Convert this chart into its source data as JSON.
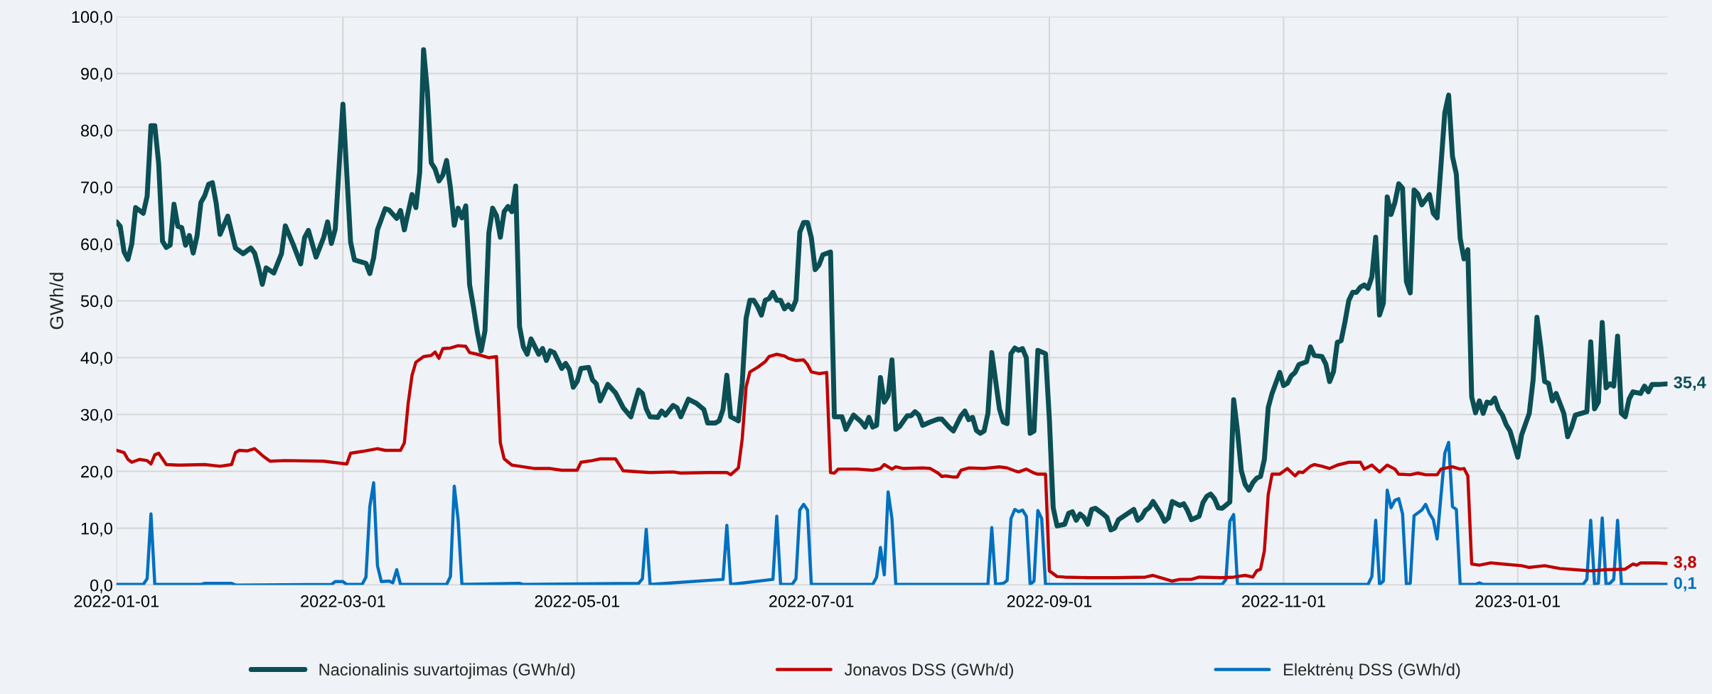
{
  "chart_data": {
    "type": "line",
    "ylabel": "GWh/d",
    "xlim": [
      "2022-01-01",
      "2023-02-09"
    ],
    "xticks": [
      "2022-01-01",
      "2022-03-01",
      "2022-05-01",
      "2022-07-01",
      "2022-09-01",
      "2022-11-01",
      "2023-01-01"
    ],
    "ylim": [
      0,
      100
    ],
    "yticks": [
      {
        "value": 0,
        "label": "0,0"
      },
      {
        "value": 10,
        "label": "10,0"
      },
      {
        "value": 20,
        "label": "20,0"
      },
      {
        "value": 30,
        "label": "30,0"
      },
      {
        "value": 40,
        "label": "40,0"
      },
      {
        "value": 50,
        "label": "50,0"
      },
      {
        "value": 60,
        "label": "60,0"
      },
      {
        "value": 70,
        "label": "70,0"
      },
      {
        "value": 80,
        "label": "80,0"
      },
      {
        "value": 90,
        "label": "90,0"
      },
      {
        "value": 100,
        "label": "100,0"
      }
    ],
    "grid": true,
    "legend": "bottom",
    "marker": "none",
    "line_style": "solid",
    "series": [
      {
        "name": "Nacionalinis suvartojimas (GWh/d)",
        "color": "#0b4f55",
        "x": [
          "2022-01-01",
          "2022-01-02",
          "2022-01-03",
          "2022-01-04",
          "2022-01-05",
          "2022-01-06",
          "2022-01-08",
          "2022-01-09",
          "2022-01-10",
          "2022-01-11",
          "2022-01-12",
          "2022-01-13",
          "2022-01-14",
          "2022-01-15",
          "2022-01-16",
          "2022-01-17",
          "2022-01-18",
          "2022-01-19",
          "2022-01-20",
          "2022-01-21",
          "2022-01-22",
          "2022-01-23",
          "2022-01-24",
          "2022-01-25",
          "2022-01-26",
          "2022-01-27",
          "2022-01-28",
          "2022-01-30",
          "2022-02-01",
          "2022-02-03",
          "2022-02-05",
          "2022-02-06",
          "2022-02-07",
          "2022-02-08",
          "2022-02-09",
          "2022-02-11",
          "2022-02-13",
          "2022-02-14",
          "2022-02-16",
          "2022-02-18",
          "2022-02-19",
          "2022-02-20",
          "2022-02-22",
          "2022-02-24",
          "2022-02-25",
          "2022-02-26",
          "2022-02-27",
          "2022-03-01",
          "2022-03-03",
          "2022-03-04",
          "2022-03-07",
          "2022-03-08",
          "2022-03-09",
          "2022-03-10",
          "2022-03-12",
          "2022-03-13",
          "2022-03-15",
          "2022-03-16",
          "2022-03-17",
          "2022-03-19",
          "2022-03-20",
          "2022-03-21",
          "2022-03-22",
          "2022-03-23",
          "2022-03-24",
          "2022-03-25",
          "2022-03-26",
          "2022-03-27",
          "2022-03-28",
          "2022-03-29",
          "2022-03-30",
          "2022-03-31",
          "2022-04-01",
          "2022-04-02",
          "2022-04-03",
          "2022-04-04",
          "2022-04-05",
          "2022-04-06",
          "2022-04-07",
          "2022-04-08",
          "2022-04-09",
          "2022-04-10",
          "2022-04-11",
          "2022-04-12",
          "2022-04-13",
          "2022-04-14",
          "2022-04-15",
          "2022-04-16",
          "2022-04-17",
          "2022-04-18",
          "2022-04-19",
          "2022-04-21",
          "2022-04-22",
          "2022-04-23",
          "2022-04-24",
          "2022-04-25",
          "2022-04-27",
          "2022-04-28",
          "2022-04-29",
          "2022-04-30",
          "2022-05-01",
          "2022-05-02",
          "2022-05-04",
          "2022-05-05",
          "2022-05-06",
          "2022-05-07",
          "2022-05-09",
          "2022-05-11",
          "2022-05-13",
          "2022-05-15",
          "2022-05-16",
          "2022-05-17",
          "2022-05-18",
          "2022-05-19",
          "2022-05-20",
          "2022-05-22",
          "2022-05-23",
          "2022-05-24",
          "2022-05-26",
          "2022-05-27",
          "2022-05-28",
          "2022-05-30",
          "2022-06-01",
          "2022-06-03",
          "2022-06-04",
          "2022-06-06",
          "2022-06-07",
          "2022-06-08",
          "2022-06-09",
          "2022-06-10",
          "2022-06-12",
          "2022-06-13",
          "2022-06-14",
          "2022-06-15",
          "2022-06-16",
          "2022-06-17",
          "2022-06-18",
          "2022-06-19",
          "2022-06-20",
          "2022-06-21",
          "2022-06-22",
          "2022-06-23",
          "2022-06-24",
          "2022-06-25",
          "2022-06-26",
          "2022-06-27",
          "2022-06-28",
          "2022-06-29",
          "2022-06-30",
          "2022-07-01",
          "2022-07-02",
          "2022-07-03",
          "2022-07-04",
          "2022-07-06",
          "2022-07-07",
          "2022-07-09",
          "2022-07-10",
          "2022-07-12",
          "2022-07-14",
          "2022-07-15",
          "2022-07-16",
          "2022-07-17",
          "2022-07-18",
          "2022-07-19",
          "2022-07-20",
          "2022-07-21",
          "2022-07-22",
          "2022-07-23",
          "2022-07-24",
          "2022-07-26",
          "2022-07-27",
          "2022-07-28",
          "2022-07-29",
          "2022-07-30",
          "2022-08-01",
          "2022-08-03",
          "2022-08-04",
          "2022-08-06",
          "2022-08-07",
          "2022-08-09",
          "2022-08-10",
          "2022-08-11",
          "2022-08-12",
          "2022-08-13",
          "2022-08-14",
          "2022-08-15",
          "2022-08-16",
          "2022-08-17",
          "2022-08-19",
          "2022-08-20",
          "2022-08-21",
          "2022-08-22",
          "2022-08-23",
          "2022-08-24",
          "2022-08-25",
          "2022-08-26",
          "2022-08-27",
          "2022-08-28",
          "2022-08-29",
          "2022-08-31",
          "2022-09-01",
          "2022-09-02",
          "2022-09-03",
          "2022-09-05",
          "2022-09-06",
          "2022-09-07",
          "2022-09-08",
          "2022-09-09",
          "2022-09-10",
          "2022-09-11",
          "2022-09-12",
          "2022-09-13",
          "2022-09-15",
          "2022-09-16",
          "2022-09-17",
          "2022-09-18",
          "2022-09-19",
          "2022-09-21",
          "2022-09-23",
          "2022-09-24",
          "2022-09-25",
          "2022-09-26",
          "2022-09-27",
          "2022-09-28",
          "2022-09-30",
          "2022-10-01",
          "2022-10-02",
          "2022-10-03",
          "2022-10-05",
          "2022-10-06",
          "2022-10-07",
          "2022-10-08",
          "2022-10-10",
          "2022-10-11",
          "2022-10-12",
          "2022-10-13",
          "2022-10-14",
          "2022-10-15",
          "2022-10-16",
          "2022-10-18",
          "2022-10-19",
          "2022-10-20",
          "2022-10-21",
          "2022-10-22",
          "2022-10-23",
          "2022-10-24",
          "2022-10-25",
          "2022-10-26",
          "2022-10-27",
          "2022-10-28",
          "2022-10-29",
          "2022-10-31",
          "2022-11-01",
          "2022-11-02",
          "2022-11-03",
          "2022-11-04",
          "2022-11-05",
          "2022-11-07",
          "2022-11-08",
          "2022-11-09",
          "2022-11-10",
          "2022-11-11",
          "2022-11-12",
          "2022-11-13",
          "2022-11-14",
          "2022-11-15",
          "2022-11-16",
          "2022-11-17",
          "2022-11-18",
          "2022-11-19",
          "2022-11-20",
          "2022-11-21",
          "2022-11-22",
          "2022-11-23",
          "2022-11-24",
          "2022-11-25",
          "2022-11-26",
          "2022-11-27",
          "2022-11-28",
          "2022-11-29",
          "2022-11-30",
          "2022-12-01",
          "2022-12-02",
          "2022-12-03",
          "2022-12-04",
          "2022-12-05",
          "2022-12-06",
          "2022-12-07",
          "2022-12-09",
          "2022-12-10",
          "2022-12-11",
          "2022-12-13",
          "2022-12-14",
          "2022-12-15",
          "2022-12-16",
          "2022-12-17",
          "2022-12-18",
          "2022-12-19",
          "2022-12-20",
          "2022-12-21",
          "2022-12-22",
          "2022-12-23",
          "2022-12-24",
          "2022-12-25",
          "2022-12-26",
          "2022-12-27",
          "2022-12-28",
          "2022-12-29",
          "2022-12-30",
          "2023-01-01",
          "2023-01-02",
          "2023-01-04",
          "2023-01-05",
          "2023-01-06",
          "2023-01-07",
          "2023-01-08",
          "2023-01-09",
          "2023-01-10",
          "2023-01-11",
          "2023-01-13",
          "2023-01-14",
          "2023-01-15",
          "2023-01-16",
          "2023-01-19",
          "2023-01-20",
          "2023-01-21",
          "2023-01-22",
          "2023-01-23",
          "2023-01-24",
          "2023-01-25",
          "2023-01-26",
          "2023-01-27",
          "2023-01-28",
          "2023-01-29",
          "2023-01-30",
          "2023-01-31",
          "2023-02-02",
          "2023-02-03",
          "2023-02-04",
          "2023-02-05",
          "2023-02-07",
          "2023-02-09"
        ],
        "values": [
          63.9,
          63.1,
          58.6,
          57.3,
          60.0,
          66.4,
          65.4,
          68.4,
          80.8,
          80.8,
          74.2,
          60.5,
          59.4,
          59.8,
          67.0,
          63.1,
          62.9,
          59.8,
          61.5,
          58.4,
          61.4,
          67.3,
          68.5,
          70.5,
          70.8,
          67.1,
          61.7,
          64.9,
          59.3,
          58.3,
          59.3,
          58.4,
          55.9,
          52.9,
          55.8,
          54.9,
          58.3,
          63.2,
          60.0,
          56.5,
          61.1,
          62.4,
          57.7,
          61.2,
          63.9,
          60.1,
          62.6,
          84.6,
          60.3,
          57.2,
          56.6,
          54.8,
          57.6,
          62.5,
          66.2,
          66.0,
          64.5,
          65.9,
          62.5,
          68.7,
          66.4,
          72.6,
          94.2,
          86.8,
          74.3,
          73.2,
          71.1,
          72.1,
          74.7,
          69.9,
          63.3,
          66.3,
          64.6,
          66.7,
          52.8,
          48.9,
          44.5,
          41.2,
          44.7,
          61.9,
          66.3,
          65.0,
          61.2,
          65.7,
          66.6,
          65.7,
          70.2,
          45.5,
          41.9,
          40.6,
          43.3,
          40.6,
          41.6,
          39.5,
          41.2,
          40.9,
          38.1,
          39.0,
          37.9,
          34.8,
          35.8,
          38.1,
          38.3,
          36.1,
          35.4,
          32.4,
          35.3,
          33.8,
          31.2,
          29.6,
          32.0,
          34.3,
          33.7,
          31.0,
          29.6,
          29.5,
          30.6,
          29.9,
          31.6,
          31.2,
          29.6,
          32.7,
          32.0,
          30.9,
          28.5,
          28.5,
          28.9,
          30.9,
          36.9,
          29.6,
          28.9,
          35.5,
          46.9,
          50.1,
          50.1,
          49.0,
          47.5,
          50.1,
          50.4,
          51.5,
          50.1,
          50.1,
          48.6,
          49.3,
          48.5,
          50.1,
          62.1,
          63.8,
          63.8,
          61.1,
          55.5,
          56.3,
          58.1,
          58.6,
          29.6,
          29.6,
          27.4,
          29.9,
          28.7,
          27.8,
          29.5,
          27.8,
          28.1,
          36.5,
          32.2,
          33.3,
          39.6,
          27.4,
          27.9,
          29.8,
          29.8,
          30.5,
          29.9,
          28.1,
          28.7,
          29.2,
          29.2,
          27.7,
          27.1,
          29.8,
          30.6,
          29.1,
          29.5,
          27.2,
          26.7,
          27.1,
          30.2,
          40.9,
          31.0,
          28.7,
          28.4,
          40.7,
          41.7,
          41.3,
          41.6,
          40.0,
          26.7,
          27.1,
          41.3,
          40.7,
          29.2,
          13.6,
          10.4,
          10.7,
          12.6,
          12.9,
          11.4,
          12.5,
          11.9,
          10.7,
          13.3,
          13.5,
          12.5,
          11.9,
          9.7,
          10.0,
          11.5,
          12.4,
          13.3,
          11.4,
          11.9,
          13.1,
          13.6,
          14.7,
          12.6,
          11.2,
          11.8,
          14.7,
          14.0,
          14.3,
          13.1,
          11.5,
          12.1,
          14.5,
          15.6,
          16.0,
          15.2,
          13.6,
          13.5,
          14.6,
          32.6,
          27.1,
          20.1,
          17.7,
          16.7,
          18.0,
          18.8,
          19.1,
          22.1,
          31.2,
          33.7,
          37.4,
          35.1,
          35.5,
          36.8,
          37.4,
          38.8,
          39.3,
          41.9,
          40.4,
          40.3,
          40.2,
          38.9,
          35.8,
          37.5,
          42.7,
          43.0,
          46.3,
          50.1,
          51.5,
          51.5,
          52.4,
          52.8,
          52.2,
          54.2,
          61.2,
          47.5,
          49.6,
          68.3,
          65.2,
          67.3,
          70.6,
          69.8,
          53.4,
          51.4,
          69.5,
          68.8,
          66.9,
          68.7,
          65.4,
          64.6,
          83.1,
          86.2,
          75.4,
          72.3,
          61.0,
          57.4,
          59.0,
          33.1,
          30.3,
          32.4,
          30.2,
          32.2,
          32.0,
          32.9,
          30.9,
          29.9,
          28.2,
          27.1,
          22.5,
          26.4,
          30.2,
          36.1,
          47.1,
          41.9,
          35.8,
          35.5,
          32.4,
          33.7,
          30.2,
          26.1,
          27.7,
          29.9,
          30.5,
          42.8,
          31.0,
          32.2,
          46.2,
          34.7,
          35.4,
          35.0,
          43.8,
          30.2,
          29.6,
          32.7,
          34.0,
          33.7,
          35.0,
          34.0,
          35.3,
          35.3,
          35.4
        ]
      },
      {
        "name": "Jonavos DSS (GWh/d)",
        "color": "#c00000",
        "x": [
          "2022-01-01",
          "2022-01-03",
          "2022-01-04",
          "2022-01-05",
          "2022-01-07",
          "2022-01-09",
          "2022-01-10",
          "2022-01-11",
          "2022-01-12",
          "2022-01-14",
          "2022-01-17",
          "2022-01-24",
          "2022-01-28",
          "2022-01-31",
          "2022-02-01",
          "2022-02-02",
          "2022-02-04",
          "2022-02-06",
          "2022-02-08",
          "2022-02-10",
          "2022-02-14",
          "2022-02-24",
          "2022-03-02",
          "2022-03-03",
          "2022-03-06",
          "2022-03-10",
          "2022-03-12",
          "2022-03-16",
          "2022-03-17",
          "2022-03-18",
          "2022-03-19",
          "2022-03-20",
          "2022-03-22",
          "2022-03-24",
          "2022-03-25",
          "2022-03-26",
          "2022-03-27",
          "2022-03-29",
          "2022-03-31",
          "2022-04-02",
          "2022-04-03",
          "2022-04-05",
          "2022-04-08",
          "2022-04-10",
          "2022-04-11",
          "2022-04-12",
          "2022-04-14",
          "2022-04-16",
          "2022-04-20",
          "2022-04-24",
          "2022-04-27",
          "2022-05-01",
          "2022-05-02",
          "2022-05-05",
          "2022-05-07",
          "2022-05-11",
          "2022-05-13",
          "2022-05-20",
          "2022-05-26",
          "2022-05-28",
          "2022-06-04",
          "2022-06-09",
          "2022-06-10",
          "2022-06-12",
          "2022-06-13",
          "2022-06-14",
          "2022-06-15",
          "2022-06-17",
          "2022-06-19",
          "2022-06-20",
          "2022-06-22",
          "2022-06-24",
          "2022-06-25",
          "2022-06-27",
          "2022-06-29",
          "2022-06-30",
          "2022-07-01",
          "2022-07-03",
          "2022-07-05",
          "2022-07-06",
          "2022-07-07",
          "2022-07-08",
          "2022-07-11",
          "2022-07-13",
          "2022-07-17",
          "2022-07-19",
          "2022-07-20",
          "2022-07-22",
          "2022-07-23",
          "2022-07-25",
          "2022-07-30",
          "2022-08-01",
          "2022-08-03",
          "2022-08-04",
          "2022-08-05",
          "2022-08-07",
          "2022-08-08",
          "2022-08-09",
          "2022-08-11",
          "2022-08-15",
          "2022-08-19",
          "2022-08-21",
          "2022-08-23",
          "2022-08-24",
          "2022-08-26",
          "2022-08-28",
          "2022-08-29",
          "2022-08-31",
          "2022-09-01",
          "2022-09-03",
          "2022-09-05",
          "2022-09-11",
          "2022-09-18",
          "2022-09-26",
          "2022-09-28",
          "2022-10-01",
          "2022-10-03",
          "2022-10-05",
          "2022-10-08",
          "2022-10-10",
          "2022-10-16",
          "2022-10-19",
          "2022-10-22",
          "2022-10-24",
          "2022-10-25",
          "2022-10-26",
          "2022-10-27",
          "2022-10-28",
          "2022-10-29",
          "2022-10-31",
          "2022-11-02",
          "2022-11-04",
          "2022-11-05",
          "2022-11-06",
          "2022-11-08",
          "2022-11-09",
          "2022-11-11",
          "2022-11-13",
          "2022-11-15",
          "2022-11-18",
          "2022-11-21",
          "2022-11-22",
          "2022-11-24",
          "2022-11-26",
          "2022-11-28",
          "2022-11-30",
          "2022-12-01",
          "2022-12-04",
          "2022-12-06",
          "2022-12-08",
          "2022-12-11",
          "2022-12-12",
          "2022-12-15",
          "2022-12-17",
          "2022-12-18",
          "2022-12-19",
          "2022-12-20",
          "2022-12-22",
          "2022-12-25",
          "2022-12-28",
          "2023-01-02",
          "2023-01-04",
          "2023-01-08",
          "2023-01-12",
          "2023-01-16",
          "2023-01-20",
          "2023-01-24",
          "2023-01-29",
          "2023-01-31",
          "2023-02-01",
          "2023-02-02",
          "2023-02-06",
          "2023-02-09"
        ],
        "values": [
          23.7,
          23.3,
          22.1,
          21.6,
          22.1,
          21.9,
          21.3,
          22.9,
          23.2,
          21.2,
          21.1,
          21.2,
          20.9,
          21.2,
          23.3,
          23.7,
          23.6,
          24.0,
          22.8,
          21.8,
          21.9,
          21.8,
          21.3,
          23.2,
          23.5,
          24.0,
          23.7,
          23.7,
          25.0,
          32.0,
          36.9,
          39.2,
          40.2,
          40.4,
          41.0,
          39.9,
          41.6,
          41.7,
          42.1,
          42.0,
          40.9,
          40.6,
          40.0,
          40.2,
          25.0,
          22.2,
          21.1,
          20.9,
          20.5,
          20.5,
          20.2,
          20.2,
          21.6,
          21.9,
          22.2,
          22.2,
          20.1,
          19.8,
          19.9,
          19.7,
          19.8,
          19.8,
          19.4,
          20.6,
          25.7,
          34.8,
          37.5,
          38.3,
          39.3,
          40.2,
          40.6,
          40.3,
          39.9,
          39.5,
          39.6,
          38.8,
          37.5,
          37.2,
          37.4,
          19.8,
          19.7,
          20.4,
          20.4,
          20.4,
          20.2,
          20.5,
          21.2,
          20.4,
          20.8,
          20.5,
          20.6,
          20.5,
          19.7,
          19.1,
          19.2,
          19.0,
          19.0,
          20.2,
          20.6,
          20.5,
          20.8,
          20.6,
          20.1,
          19.9,
          20.4,
          19.7,
          19.5,
          19.5,
          2.5,
          1.5,
          1.4,
          1.3,
          1.3,
          1.4,
          1.7,
          1.1,
          0.7,
          1.0,
          1.0,
          1.4,
          1.3,
          1.4,
          1.7,
          1.4,
          2.5,
          2.8,
          6.0,
          15.9,
          19.5,
          19.5,
          20.5,
          19.2,
          19.9,
          19.8,
          20.9,
          21.2,
          20.9,
          20.5,
          21.1,
          21.6,
          21.6,
          20.4,
          21.1,
          19.9,
          21.1,
          20.4,
          19.5,
          19.4,
          19.7,
          19.4,
          19.4,
          20.4,
          20.8,
          20.4,
          20.5,
          19.2,
          3.7,
          3.5,
          3.9,
          3.7,
          3.4,
          3.1,
          3.4,
          2.9,
          2.7,
          2.5,
          2.7,
          2.8,
          3.7,
          3.5,
          3.9,
          3.9,
          3.8
        ]
      },
      {
        "name": "Elektrėnų DSS (GWh/d)",
        "color": "#0070c0",
        "x": [
          "2022-01-01",
          "2022-01-08",
          "2022-01-09",
          "2022-01-10",
          "2022-01-11",
          "2022-01-23",
          "2022-01-24",
          "2022-01-31",
          "2022-02-01",
          "2022-02-26",
          "2022-02-27",
          "2022-03-01",
          "2022-03-02",
          "2022-03-06",
          "2022-03-07",
          "2022-03-08",
          "2022-03-09",
          "2022-03-10",
          "2022-03-11",
          "2022-03-13",
          "2022-03-14",
          "2022-03-15",
          "2022-03-16",
          "2022-03-28",
          "2022-03-29",
          "2022-03-30",
          "2022-03-31",
          "2022-04-01",
          "2022-04-16",
          "2022-04-17",
          "2022-05-17",
          "2022-05-18",
          "2022-05-19",
          "2022-05-20",
          "2022-06-08",
          "2022-06-09",
          "2022-06-10",
          "2022-06-21",
          "2022-06-22",
          "2022-06-23",
          "2022-06-26",
          "2022-06-27",
          "2022-06-28",
          "2022-06-29",
          "2022-06-30",
          "2022-07-01",
          "2022-07-17",
          "2022-07-18",
          "2022-07-19",
          "2022-07-20",
          "2022-07-21",
          "2022-07-22",
          "2022-07-23",
          "2022-08-16",
          "2022-08-17",
          "2022-08-18",
          "2022-08-20",
          "2022-08-21",
          "2022-08-22",
          "2022-08-23",
          "2022-08-24",
          "2022-08-25",
          "2022-08-26",
          "2022-08-27",
          "2022-08-28",
          "2022-08-29",
          "2022-08-30",
          "2022-08-31",
          "2022-10-16",
          "2022-10-17",
          "2022-10-18",
          "2022-10-19",
          "2022-10-20",
          "2022-11-23",
          "2022-11-24",
          "2022-11-25",
          "2022-11-26",
          "2022-11-27",
          "2022-11-28",
          "2022-11-29",
          "2022-11-30",
          "2022-12-01",
          "2022-12-02",
          "2022-12-03",
          "2022-12-04",
          "2022-12-05",
          "2022-12-07",
          "2022-12-08",
          "2022-12-09",
          "2022-12-10",
          "2022-12-11",
          "2022-12-13",
          "2022-12-14",
          "2022-12-15",
          "2022-12-16",
          "2022-12-17",
          "2022-12-21",
          "2022-12-22",
          "2022-12-23",
          "2023-01-18",
          "2023-01-19",
          "2023-01-20",
          "2023-01-21",
          "2023-01-22",
          "2023-01-23",
          "2023-01-24",
          "2023-01-25",
          "2023-01-26",
          "2023-01-27",
          "2023-01-28",
          "2023-02-09"
        ],
        "values": [
          0.1,
          0.1,
          1.1,
          12.5,
          0.1,
          0.1,
          0.3,
          0.3,
          0.0,
          0.1,
          0.6,
          0.6,
          0.1,
          0.1,
          1.4,
          13.8,
          18.0,
          3.4,
          0.6,
          0.7,
          0.4,
          2.7,
          0.1,
          0.1,
          1.5,
          17.4,
          11.5,
          0.1,
          0.3,
          0.1,
          0.3,
          1.1,
          9.8,
          0.1,
          1.0,
          10.5,
          0.1,
          1.0,
          12.1,
          0.1,
          0.1,
          1.1,
          13.2,
          14.2,
          13.2,
          0.1,
          0.1,
          1.4,
          6.6,
          1.8,
          16.4,
          11.7,
          0.1,
          0.1,
          10.1,
          0.1,
          0.3,
          0.8,
          11.7,
          13.3,
          12.9,
          13.2,
          12.1,
          0.1,
          0.7,
          13.1,
          11.7,
          0.1,
          0.1,
          1.0,
          11.2,
          12.4,
          0.1,
          0.1,
          1.5,
          11.4,
          0.1,
          0.7,
          16.7,
          13.6,
          14.9,
          15.2,
          12.5,
          0.1,
          0.3,
          12.2,
          13.2,
          14.2,
          12.6,
          11.5,
          8.1,
          23.2,
          25.1,
          13.8,
          13.3,
          0.1,
          0.1,
          0.4,
          0.1,
          0.1,
          1.0,
          11.4,
          0.1,
          0.3,
          11.8,
          0.1,
          0.3,
          1.0,
          11.4,
          0.1,
          0.1
        ]
      }
    ],
    "annotations": [
      {
        "text": "35,4",
        "x": "2023-02-09",
        "y": 35.4
      },
      {
        "text": "3,8",
        "x": "2023-02-09",
        "y": 3.8
      },
      {
        "text": "0,1",
        "x": "2023-02-09",
        "y": 0.1
      }
    ]
  }
}
